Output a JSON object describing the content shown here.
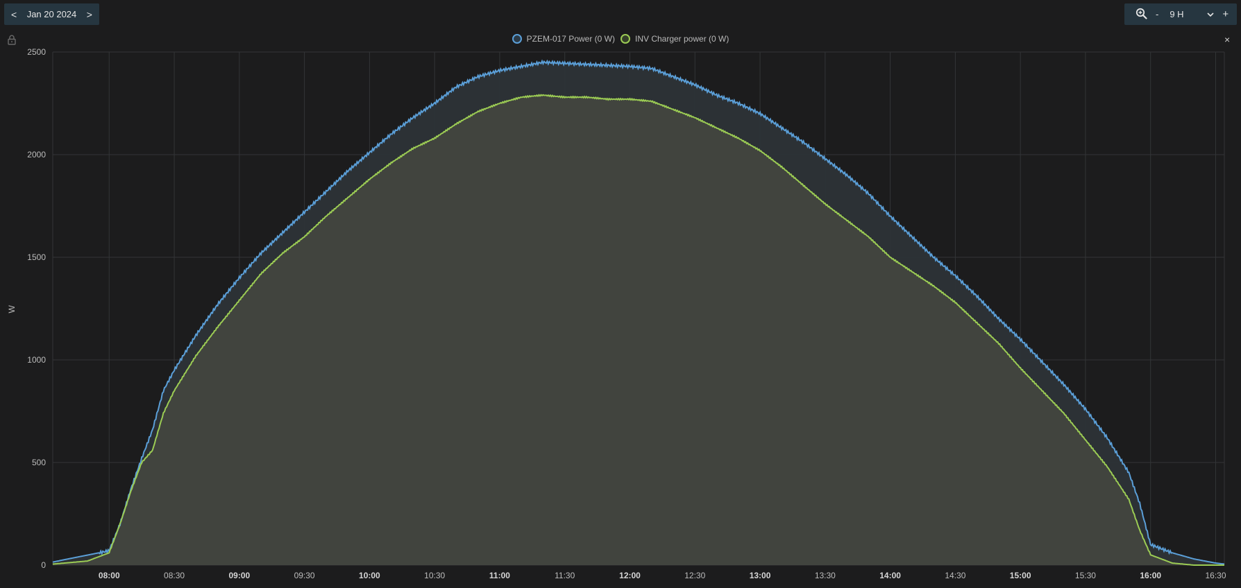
{
  "date_nav": {
    "prev": "<",
    "label": "Jan 20 2024",
    "next": ">"
  },
  "zoom": {
    "minus": "-",
    "value": "9 H",
    "plus": "+",
    "icon": "zoom-in-icon"
  },
  "close_label": "×",
  "colors": {
    "background": "#1c1c1d",
    "grid": "#333537",
    "fill": "#42463f",
    "pzem": "#5b9fd8",
    "inv": "#9ccc54"
  },
  "chart_data": {
    "type": "area",
    "ylabel": "W",
    "ylim": [
      0,
      2500
    ],
    "y_ticks": [
      0,
      500,
      1000,
      1500,
      2000,
      2500
    ],
    "x_range": [
      "07:34",
      "16:34"
    ],
    "x_ticks": [
      {
        "label": "08:00",
        "bold": true
      },
      {
        "label": "08:30",
        "bold": false
      },
      {
        "label": "09:00",
        "bold": true
      },
      {
        "label": "09:30",
        "bold": false
      },
      {
        "label": "10:00",
        "bold": true
      },
      {
        "label": "10:30",
        "bold": false
      },
      {
        "label": "11:00",
        "bold": true
      },
      {
        "label": "11:30",
        "bold": false
      },
      {
        "label": "12:00",
        "bold": true
      },
      {
        "label": "12:30",
        "bold": false
      },
      {
        "label": "13:00",
        "bold": true
      },
      {
        "label": "13:30",
        "bold": false
      },
      {
        "label": "14:00",
        "bold": true
      },
      {
        "label": "14:30",
        "bold": false
      },
      {
        "label": "15:00",
        "bold": true
      },
      {
        "label": "15:30",
        "bold": false
      },
      {
        "label": "16:00",
        "bold": true
      },
      {
        "label": "16:30",
        "bold": false
      }
    ],
    "grid": true,
    "legend_position": "top-center",
    "series": [
      {
        "name": "PZEM-017 Power (0 W)",
        "color": "#5b9fd8",
        "x": [
          "07:34",
          "08:00",
          "08:05",
          "08:10",
          "08:15",
          "08:20",
          "08:25",
          "08:30",
          "08:40",
          "08:50",
          "09:00",
          "09:10",
          "09:20",
          "09:30",
          "09:40",
          "09:50",
          "10:00",
          "10:10",
          "10:20",
          "10:30",
          "10:40",
          "10:50",
          "11:00",
          "11:10",
          "11:20",
          "11:30",
          "11:40",
          "11:50",
          "12:00",
          "12:10",
          "12:20",
          "12:30",
          "12:40",
          "12:50",
          "13:00",
          "13:10",
          "13:20",
          "13:30",
          "13:40",
          "13:50",
          "14:00",
          "14:10",
          "14:20",
          "14:30",
          "14:40",
          "14:50",
          "15:00",
          "15:10",
          "15:20",
          "15:30",
          "15:40",
          "15:50",
          "15:55",
          "16:00",
          "16:10",
          "16:20",
          "16:30",
          "16:34"
        ],
        "y": [
          15,
          70,
          200,
          370,
          520,
          660,
          850,
          950,
          1120,
          1270,
          1400,
          1520,
          1620,
          1720,
          1820,
          1920,
          2010,
          2100,
          2180,
          2250,
          2330,
          2380,
          2410,
          2430,
          2450,
          2445,
          2440,
          2435,
          2430,
          2420,
          2380,
          2340,
          2290,
          2250,
          2200,
          2130,
          2060,
          1980,
          1900,
          1810,
          1700,
          1600,
          1500,
          1410,
          1310,
          1200,
          1100,
          990,
          880,
          760,
          620,
          450,
          300,
          100,
          60,
          30,
          10,
          5
        ]
      },
      {
        "name": "INV Charger power (0 W)",
        "color": "#9ccc54",
        "x": [
          "07:34",
          "07:50",
          "08:00",
          "08:05",
          "08:10",
          "08:15",
          "08:20",
          "08:25",
          "08:30",
          "08:40",
          "08:50",
          "09:00",
          "09:10",
          "09:20",
          "09:30",
          "09:40",
          "09:50",
          "10:00",
          "10:10",
          "10:20",
          "10:30",
          "10:40",
          "10:50",
          "11:00",
          "11:10",
          "11:20",
          "11:30",
          "11:40",
          "11:50",
          "12:00",
          "12:10",
          "12:20",
          "12:30",
          "12:40",
          "12:50",
          "13:00",
          "13:10",
          "13:20",
          "13:30",
          "13:40",
          "13:50",
          "14:00",
          "14:10",
          "14:20",
          "14:30",
          "14:40",
          "14:50",
          "15:00",
          "15:10",
          "15:20",
          "15:30",
          "15:40",
          "15:50",
          "15:55",
          "16:00",
          "16:10",
          "16:20",
          "16:30",
          "16:34"
        ],
        "y": [
          5,
          20,
          60,
          200,
          360,
          500,
          560,
          740,
          850,
          1020,
          1160,
          1290,
          1420,
          1520,
          1600,
          1700,
          1790,
          1880,
          1960,
          2030,
          2080,
          2150,
          2210,
          2250,
          2280,
          2290,
          2280,
          2280,
          2270,
          2270,
          2260,
          2220,
          2180,
          2130,
          2080,
          2020,
          1940,
          1850,
          1760,
          1680,
          1600,
          1500,
          1430,
          1360,
          1280,
          1180,
          1080,
          960,
          850,
          740,
          610,
          480,
          320,
          170,
          50,
          10,
          0,
          0,
          0
        ]
      }
    ]
  }
}
